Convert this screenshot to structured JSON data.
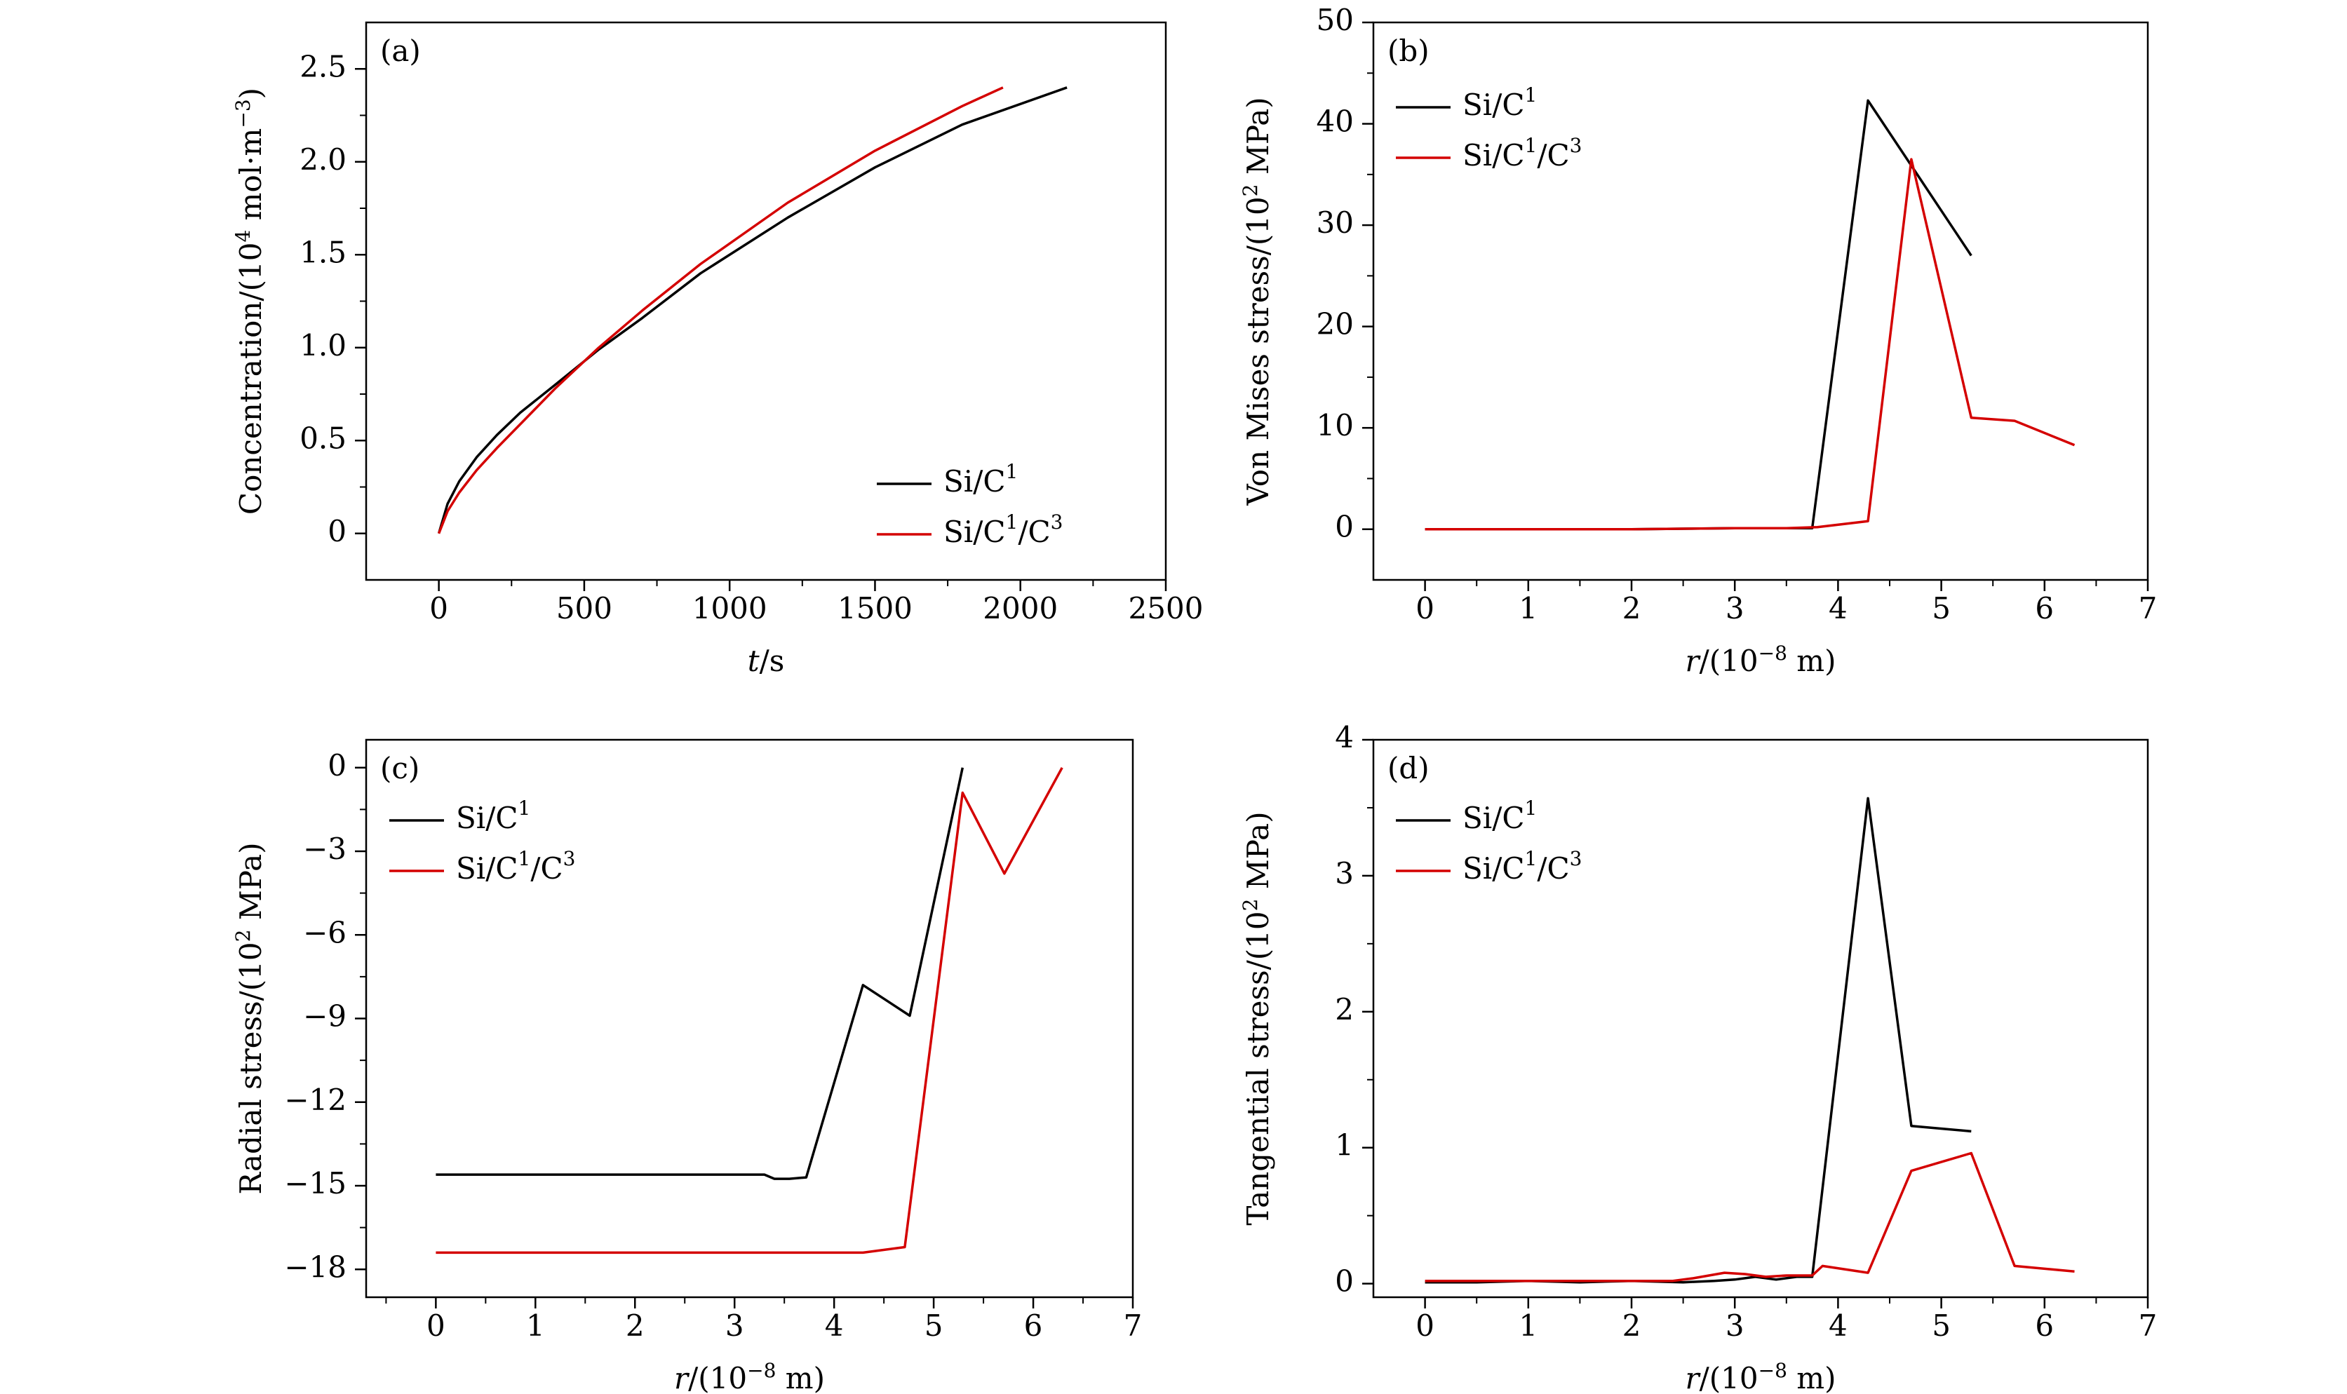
{
  "colors": {
    "axis": "#000000",
    "series1": "#000000",
    "series2": "#d40000"
  },
  "chart_data": [
    {
      "id": "a",
      "type": "line",
      "panel_label": "(a)",
      "xlabel_var": "t",
      "xlabel_unit": "/s",
      "ylabel_text": "Concentration/(10",
      "ylabel_exp": "4",
      "ylabel_unit": " mol·m",
      "ylabel_exp2": "−3",
      "ylabel_close": ")",
      "xlim": [
        -250,
        2500
      ],
      "ylim": [
        -0.25,
        2.75
      ],
      "xticks": [
        0,
        500,
        1000,
        1500,
        2000,
        2500
      ],
      "xticklabels": [
        "0",
        "500",
        "1000",
        "1500",
        "2000",
        "2500"
      ],
      "xminor": [
        250,
        750,
        1250,
        1750,
        2250
      ],
      "yticks": [
        0,
        0.5,
        1.0,
        1.5,
        2.0,
        2.5
      ],
      "yticklabels": [
        "0",
        "0.5",
        "1.0",
        "1.5",
        "2.0",
        "2.5"
      ],
      "yminor": [
        0.25,
        0.75,
        1.25,
        1.75,
        2.25
      ],
      "legend_position": "bottom-right",
      "series": [
        {
          "name": "Si/C",
          "sup": "1",
          "color": "#000000",
          "x": [
            0,
            30,
            70,
            130,
            200,
            280,
            400,
            550,
            700,
            900,
            1200,
            1500,
            1800,
            2160
          ],
          "y": [
            0,
            0.16,
            0.28,
            0.41,
            0.53,
            0.65,
            0.8,
            0.99,
            1.16,
            1.4,
            1.7,
            1.97,
            2.2,
            2.4
          ]
        },
        {
          "name": "Si/C",
          "sup": "1",
          "sup2": "3",
          "color": "#d40000",
          "x": [
            0,
            30,
            70,
            130,
            200,
            300,
            400,
            550,
            700,
            900,
            1200,
            1500,
            1800,
            1940
          ],
          "y": [
            0,
            0.12,
            0.22,
            0.34,
            0.46,
            0.62,
            0.78,
            1.0,
            1.2,
            1.45,
            1.78,
            2.06,
            2.3,
            2.4
          ]
        }
      ]
    },
    {
      "id": "b",
      "type": "line",
      "panel_label": "(b)",
      "xlabel_var": "r",
      "xlabel_unit": "/(10",
      "xlabel_exp": "−8",
      "xlabel_unit2": " m)",
      "ylabel_text": "Von Mises stress/(10",
      "ylabel_exp": "2",
      "ylabel_unit": " MPa)",
      "xlim": [
        -0.5,
        7
      ],
      "ylim": [
        -5,
        50
      ],
      "xticks": [
        0,
        1,
        2,
        3,
        4,
        5,
        6,
        7
      ],
      "xticklabels": [
        "0",
        "1",
        "2",
        "3",
        "4",
        "5",
        "6",
        "7"
      ],
      "xminor": [
        0.5,
        1.5,
        2.5,
        3.5,
        4.5,
        5.5,
        6.5
      ],
      "yticks": [
        0,
        10,
        20,
        30,
        40,
        50
      ],
      "yticklabels": [
        "0",
        "10",
        "20",
        "30",
        "40",
        "50"
      ],
      "yminor": [
        5,
        15,
        25,
        35,
        45
      ],
      "legend_position": "top-left",
      "series": [
        {
          "name": "Si/C",
          "sup": "1",
          "color": "#000000",
          "x": [
            0,
            1,
            2,
            2.5,
            3,
            3.5,
            3.75,
            4.29,
            5.29
          ],
          "y": [
            0,
            0,
            0,
            0.05,
            0.1,
            0.1,
            0.1,
            42.3,
            27.0
          ]
        },
        {
          "name": "Si/C",
          "sup": "1",
          "sup2": "3",
          "color": "#d40000",
          "x": [
            0,
            1,
            2,
            3,
            3.5,
            3.8,
            4.29,
            4.71,
            5.29,
            5.71,
            6.29
          ],
          "y": [
            0,
            0,
            0,
            0.1,
            0.1,
            0.2,
            0.8,
            36.5,
            11.0,
            10.7,
            8.3
          ]
        }
      ]
    },
    {
      "id": "c",
      "type": "line",
      "panel_label": "(c)",
      "xlabel_var": "r",
      "xlabel_unit": "/(10",
      "xlabel_exp": "−8",
      "xlabel_unit2": " m)",
      "ylabel_text": "Radial stress/(10",
      "ylabel_exp": "2",
      "ylabel_unit": " MPa)",
      "xlim": [
        -0.7,
        7
      ],
      "ylim": [
        -19,
        1
      ],
      "xticks": [
        0,
        1,
        2,
        3,
        4,
        5,
        6,
        7
      ],
      "xticklabels": [
        "0",
        "1",
        "2",
        "3",
        "4",
        "5",
        "6",
        "7"
      ],
      "xminor": [
        -0.5,
        0.5,
        1.5,
        2.5,
        3.5,
        4.5,
        5.5,
        6.5
      ],
      "yticks": [
        0,
        -3,
        -6,
        -9,
        -12,
        -15,
        -18
      ],
      "yticklabels": [
        "0",
        "−3",
        "−6",
        "−9",
        "−12",
        "−15",
        "−18"
      ],
      "yminor": [
        -1.5,
        -4.5,
        -7.5,
        -10.5,
        -13.5,
        -16.5
      ],
      "legend_position": "top-left",
      "series": [
        {
          "name": "Si/C",
          "sup": "1",
          "color": "#000000",
          "x": [
            0,
            1,
            2,
            3,
            3.3,
            3.4,
            3.55,
            3.72,
            4.29,
            4.76,
            5.29
          ],
          "y": [
            -14.6,
            -14.6,
            -14.6,
            -14.6,
            -14.6,
            -14.75,
            -14.75,
            -14.7,
            -7.8,
            -8.9,
            0
          ]
        },
        {
          "name": "Si/C",
          "sup": "1",
          "sup2": "3",
          "color": "#d40000",
          "x": [
            0,
            1,
            2,
            3,
            4,
            4.29,
            4.71,
            5.29,
            5.71,
            6.29
          ],
          "y": [
            -17.4,
            -17.4,
            -17.4,
            -17.4,
            -17.4,
            -17.4,
            -17.2,
            -0.9,
            -3.8,
            0
          ]
        }
      ]
    },
    {
      "id": "d",
      "type": "line",
      "panel_label": "(d)",
      "xlabel_var": "r",
      "xlabel_unit": "/(10",
      "xlabel_exp": "−8",
      "xlabel_unit2": " m)",
      "ylabel_text": "Tangential stress/(10",
      "ylabel_exp": "2",
      "ylabel_unit": " MPa)",
      "xlim": [
        -0.5,
        7
      ],
      "ylim": [
        -0.1,
        4
      ],
      "xticks": [
        0,
        1,
        2,
        3,
        4,
        5,
        6,
        7
      ],
      "xticklabels": [
        "0",
        "1",
        "2",
        "3",
        "4",
        "5",
        "6",
        "7"
      ],
      "xminor": [
        0.5,
        1.5,
        2.5,
        3.5,
        4.5,
        5.5,
        6.5
      ],
      "yticks": [
        0,
        1,
        2,
        3,
        4
      ],
      "yticklabels": [
        "0",
        "1",
        "2",
        "3",
        "4"
      ],
      "yminor": [
        0.5,
        1.5,
        2.5,
        3.5
      ],
      "legend_position": "top-left",
      "series": [
        {
          "name": "Si/C",
          "sup": "1",
          "color": "#000000",
          "x": [
            0,
            0.5,
            1,
            1.5,
            2,
            2.5,
            2.8,
            3.0,
            3.2,
            3.4,
            3.6,
            3.75,
            4.29,
            4.71,
            5.29
          ],
          "y": [
            0.01,
            0.01,
            0.02,
            0.01,
            0.02,
            0.01,
            0.02,
            0.03,
            0.05,
            0.03,
            0.05,
            0.05,
            3.57,
            1.16,
            1.12
          ]
        },
        {
          "name": "Si/C",
          "sup": "1",
          "sup2": "3",
          "color": "#d40000",
          "x": [
            0,
            0.5,
            1,
            1.5,
            2,
            2.4,
            2.6,
            2.9,
            3.1,
            3.3,
            3.5,
            3.75,
            3.85,
            4.29,
            4.71,
            5.29,
            5.71,
            6.29
          ],
          "y": [
            0.02,
            0.02,
            0.02,
            0.02,
            0.02,
            0.02,
            0.04,
            0.08,
            0.07,
            0.05,
            0.06,
            0.06,
            0.13,
            0.08,
            0.83,
            0.96,
            0.13,
            0.09
          ]
        }
      ]
    }
  ]
}
